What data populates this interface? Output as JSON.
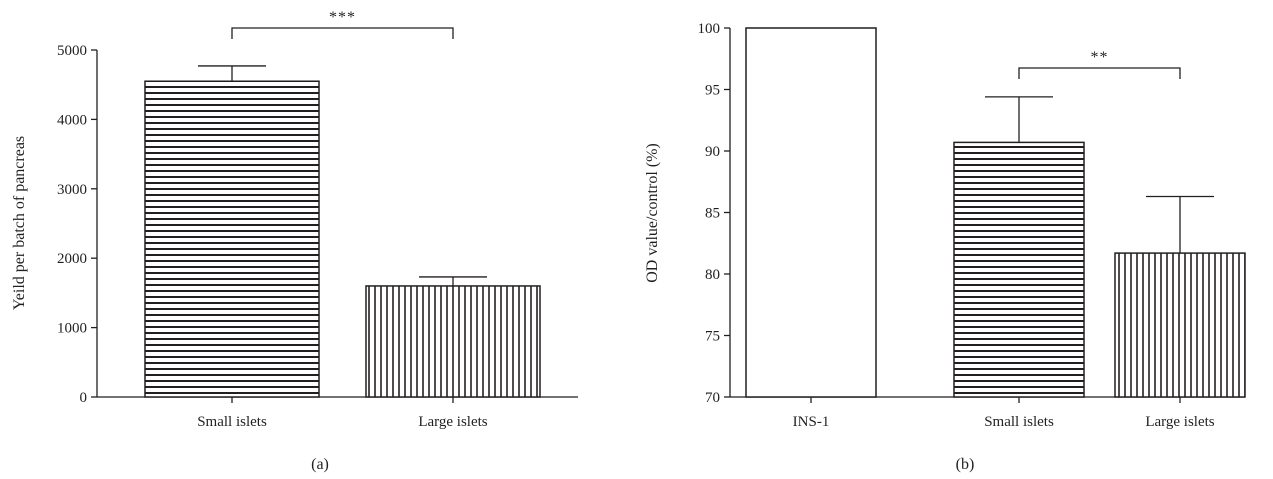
{
  "chart_data": [
    {
      "type": "bar",
      "panel_label": "(a)",
      "categories": [
        "Small islets",
        "Large islets"
      ],
      "values": [
        4550,
        1600
      ],
      "errors": [
        220,
        130
      ],
      "patterns": [
        "horizontal-lines",
        "vertical-lines"
      ],
      "xlabel": "",
      "ylabel": "Yeild per batch of pancreas",
      "ylim": [
        0,
        5000
      ],
      "yticks": [
        0,
        1000,
        2000,
        3000,
        4000,
        5000
      ],
      "grid": false,
      "significance": [
        {
          "from": 0,
          "to": 1,
          "label": "***"
        }
      ]
    },
    {
      "type": "bar",
      "panel_label": "(b)",
      "categories": [
        "INS-1",
        "Small islets",
        "Large islets"
      ],
      "values": [
        100,
        90.7,
        81.7
      ],
      "errors": [
        0,
        3.7,
        4.6
      ],
      "patterns": [
        "none",
        "horizontal-lines",
        "vertical-lines"
      ],
      "xlabel": "",
      "ylabel": "OD value/control (%)",
      "ylim": [
        70,
        100
      ],
      "yticks": [
        70,
        75,
        80,
        85,
        90,
        95,
        100
      ],
      "grid": false,
      "significance": [
        {
          "from": 1,
          "to": 2,
          "label": "**"
        }
      ]
    }
  ],
  "colors": {
    "ink": "#231f20",
    "background": "#ffffff"
  }
}
